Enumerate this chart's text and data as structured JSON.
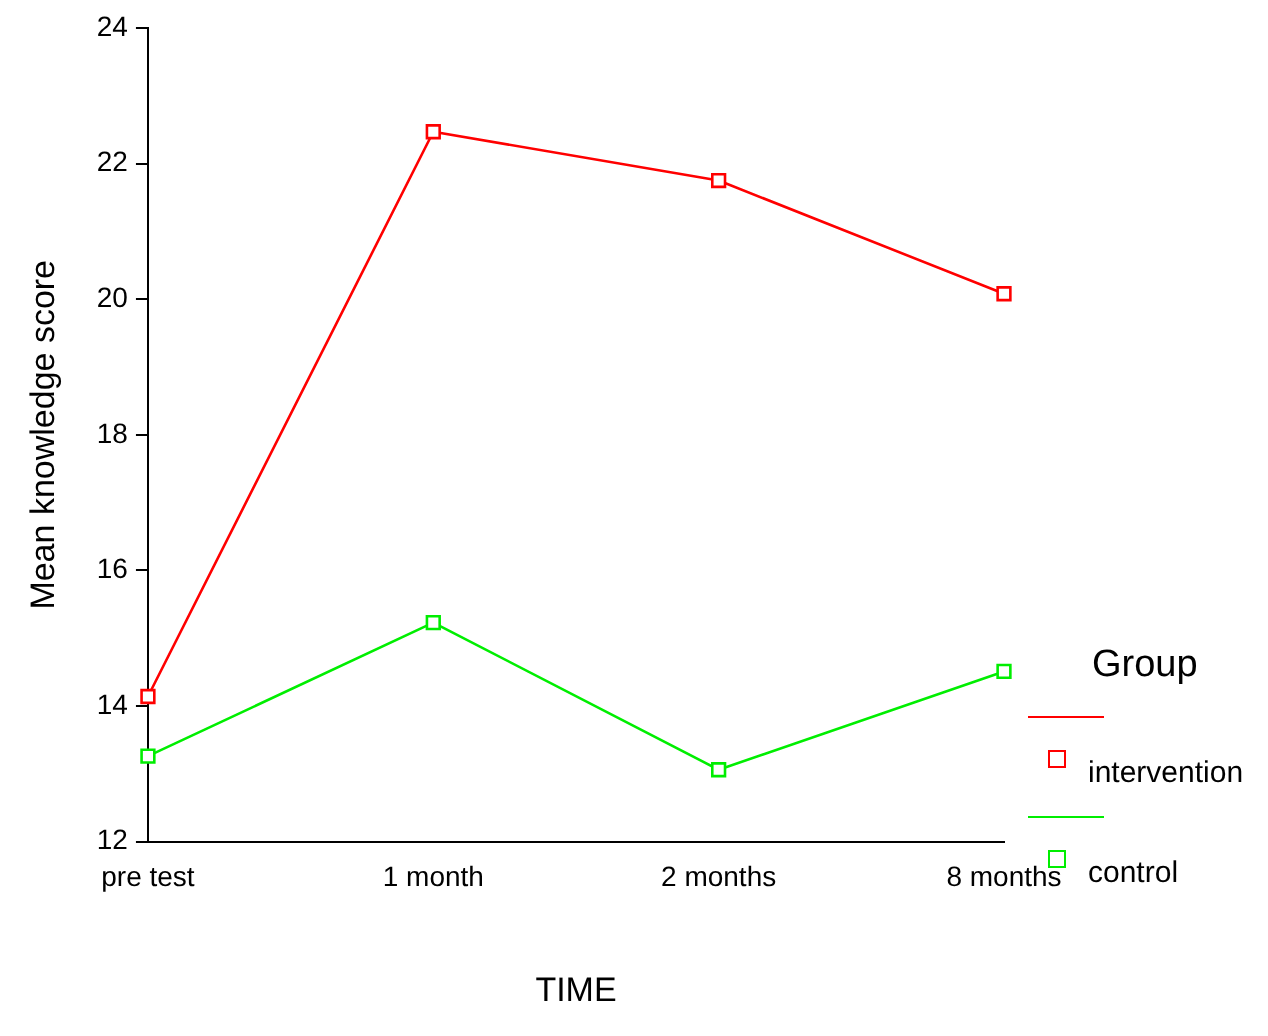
{
  "chart_data": {
    "type": "line",
    "xlabel": "TIME",
    "ylabel": "Mean knowledge score",
    "legend_title": "Group",
    "categories": [
      "pre test",
      "1 month",
      "2 months",
      "8 months"
    ],
    "series": [
      {
        "name": "intervention",
        "color": "#ff0000",
        "values": [
          14.14,
          22.47,
          21.75,
          20.08
        ]
      },
      {
        "name": "control",
        "color": "#00ee00",
        "values": [
          13.26,
          15.23,
          13.06,
          14.51
        ]
      }
    ],
    "ylim": [
      12,
      24
    ],
    "yticks": [
      12,
      14,
      16,
      18,
      20,
      22,
      24
    ],
    "grid": false,
    "legend": "right",
    "marker": "square",
    "line_style": "solid"
  }
}
